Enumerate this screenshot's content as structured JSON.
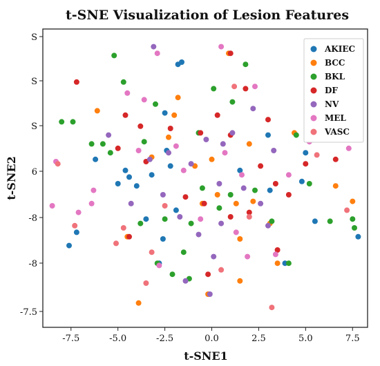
{
  "chart_data": {
    "type": "scatter",
    "title": "t-SNE Visualization of Lesion Features",
    "xlabel": "t-SNE1",
    "ylabel": "t-SNE2",
    "x_ticks": [
      "-7.5",
      "-5.0",
      "-2.5",
      "0.0",
      "2.5",
      "5.0",
      "7.5"
    ],
    "y_ticks": [
      "S",
      "S",
      "S",
      "6",
      "-8",
      "-8",
      "-7.5"
    ],
    "legend_position": "top-right",
    "series": [
      {
        "name": "AKIEC",
        "color": "#1f77b4",
        "points": [
          [
            -7.2,
            -2.7
          ],
          [
            -7.6,
            -3.3
          ],
          [
            -5.0,
            -0.5
          ],
          [
            -4.4,
            -0.2
          ],
          [
            -4.0,
            -0.6
          ],
          [
            -2.6,
            -3.0
          ],
          [
            -3.2,
            -0.1
          ],
          [
            -2.4,
            1.0
          ],
          [
            -1.8,
            4.9
          ],
          [
            -1.6,
            5.0
          ],
          [
            -1.9,
            -1.7
          ],
          [
            -2.2,
            0.3
          ],
          [
            -2.8,
            -4.1
          ],
          [
            -2.5,
            2.7
          ],
          [
            -3.5,
            -2.1
          ],
          [
            1.5,
            0.1
          ],
          [
            3.0,
            1.7
          ],
          [
            3.1,
            -0.8
          ],
          [
            3.9,
            -4.1
          ],
          [
            5.0,
            0.9
          ],
          [
            5.5,
            -2.2
          ],
          [
            4.8,
            -0.4
          ],
          [
            7.8,
            -2.9
          ],
          [
            -6.2,
            0.6
          ],
          [
            -4.6,
            0.1
          ]
        ]
      },
      {
        "name": "BCC",
        "color": "#ff7f0e",
        "points": [
          [
            -6.1,
            2.8
          ],
          [
            -4.5,
            -2.9
          ],
          [
            -1.8,
            3.4
          ],
          [
            -2.0,
            2.6
          ],
          [
            -2.3,
            1.6
          ],
          [
            -0.5,
            -1.4
          ],
          [
            0.0,
            0.6
          ],
          [
            0.3,
            -1.0
          ],
          [
            0.9,
            5.4
          ],
          [
            1.3,
            -1.4
          ],
          [
            1.5,
            -3.0
          ],
          [
            1.5,
            -4.9
          ],
          [
            2.0,
            1.3
          ],
          [
            2.2,
            -1.3
          ],
          [
            3.5,
            -4.1
          ],
          [
            4.4,
            1.8
          ],
          [
            6.6,
            -0.6
          ],
          [
            7.5,
            -1.3
          ],
          [
            -0.9,
            0.3
          ],
          [
            -3.9,
            -5.9
          ],
          [
            -0.2,
            -5.5
          ],
          [
            3.1,
            -2.3
          ],
          [
            -3.2,
            0.7
          ]
        ]
      },
      {
        "name": "BKL",
        "color": "#2ca02c",
        "points": [
          [
            -8.0,
            2.3
          ],
          [
            -7.4,
            2.3
          ],
          [
            -6.4,
            1.3
          ],
          [
            -5.8,
            1.3
          ],
          [
            -5.2,
            5.3
          ],
          [
            -4.7,
            4.1
          ],
          [
            -5.4,
            0.9
          ],
          [
            -3.8,
            -2.3
          ],
          [
            -3.6,
            1.4
          ],
          [
            -3.0,
            3.1
          ],
          [
            -2.9,
            -4.1
          ],
          [
            -2.5,
            -2.1
          ],
          [
            -1.5,
            -3.6
          ],
          [
            -1.1,
            -2.3
          ],
          [
            -0.5,
            -0.7
          ],
          [
            -0.7,
            1.8
          ],
          [
            0.1,
            3.8
          ],
          [
            0.4,
            -1.6
          ],
          [
            1.0,
            -1.0
          ],
          [
            1.1,
            3.2
          ],
          [
            1.8,
            4.9
          ],
          [
            2.3,
            -0.8
          ],
          [
            3.2,
            -2.2
          ],
          [
            4.1,
            -4.1
          ],
          [
            4.5,
            1.7
          ],
          [
            5.2,
            -0.5
          ],
          [
            6.3,
            -2.2
          ],
          [
            7.5,
            -2.1
          ],
          [
            7.6,
            -2.5
          ],
          [
            -1.2,
            -4.8
          ],
          [
            -2.1,
            -4.6
          ]
        ]
      },
      {
        "name": "DF",
        "color": "#d62728",
        "points": [
          [
            -7.2,
            4.1
          ],
          [
            -5.0,
            1.1
          ],
          [
            -4.6,
            2.6
          ],
          [
            -3.8,
            2.1
          ],
          [
            -3.5,
            0.5
          ],
          [
            -2.2,
            2.0
          ],
          [
            -1.4,
            -1.1
          ],
          [
            -0.6,
            1.8
          ],
          [
            -0.4,
            -1.4
          ],
          [
            0.3,
            2.6
          ],
          [
            1.0,
            5.4
          ],
          [
            1.8,
            3.8
          ],
          [
            1.0,
            1.7
          ],
          [
            1.0,
            -2.0
          ],
          [
            2.0,
            -1.8
          ],
          [
            2.6,
            0.3
          ],
          [
            3.0,
            2.4
          ],
          [
            3.4,
            -0.5
          ],
          [
            4.1,
            -1.0
          ],
          [
            5.0,
            0.4
          ],
          [
            6.6,
            0.6
          ],
          [
            -4.4,
            -2.9
          ],
          [
            -0.2,
            -4.6
          ],
          [
            3.5,
            -3.5
          ]
        ]
      },
      {
        "name": "NV",
        "color": "#9467bd",
        "points": [
          [
            -5.5,
            1.7
          ],
          [
            -3.1,
            5.7
          ],
          [
            -3.3,
            0.6
          ],
          [
            -2.6,
            -1.0
          ],
          [
            -2.3,
            0.9
          ],
          [
            -1.7,
            -2.0
          ],
          [
            -1.4,
            -4.9
          ],
          [
            -1.1,
            0.4
          ],
          [
            -0.7,
            -2.8
          ],
          [
            -0.3,
            1.5
          ],
          [
            0.1,
            -3.8
          ],
          [
            0.4,
            -0.5
          ],
          [
            0.6,
            1.3
          ],
          [
            1.1,
            1.8
          ],
          [
            1.7,
            -0.7
          ],
          [
            2.2,
            2.9
          ],
          [
            2.6,
            -1.4
          ],
          [
            3.0,
            -2.4
          ],
          [
            3.3,
            1.0
          ],
          [
            -0.1,
            -5.5
          ],
          [
            0.5,
            -2.3
          ],
          [
            -4.3,
            -1.4
          ]
        ]
      },
      {
        "name": "MEL",
        "color": "#e377c2",
        "points": [
          [
            -8.3,
            0.5
          ],
          [
            -7.1,
            -1.8
          ],
          [
            -6.4,
            -1.4
          ],
          [
            -6.3,
            -0.8
          ],
          [
            -4.5,
            3.6
          ],
          [
            -3.6,
            3.3
          ],
          [
            -3.9,
            1.0
          ],
          [
            -2.9,
            5.4
          ],
          [
            -2.8,
            -4.2
          ],
          [
            -1.9,
            1.2
          ],
          [
            -1.5,
            0.1
          ],
          [
            -0.6,
            -2.1
          ],
          [
            0.7,
            0.9
          ],
          [
            1.3,
            -2.7
          ],
          [
            1.9,
            -3.8
          ],
          [
            2.3,
            3.9
          ],
          [
            3.4,
            -3.7
          ],
          [
            4.1,
            -0.1
          ],
          [
            5.2,
            1.4
          ],
          [
            7.3,
            1.1
          ],
          [
            -8.5,
            -1.5
          ],
          [
            0.5,
            5.7
          ],
          [
            1.6,
            -0.1
          ]
        ]
      },
      {
        "name": "VASC",
        "color": "#f0727a",
        "points": [
          [
            -8.2,
            0.4
          ],
          [
            -7.3,
            -2.4
          ],
          [
            -5.1,
            -3.2
          ],
          [
            -4.7,
            -2.5
          ],
          [
            -3.2,
            -3.6
          ],
          [
            -2.5,
            -1.5
          ],
          [
            0.5,
            -4.4
          ],
          [
            2.0,
            -2.0
          ],
          [
            3.2,
            -6.1
          ],
          [
            5.6,
            0.8
          ],
          [
            7.2,
            -1.7
          ],
          [
            -3.5,
            -5.0
          ],
          [
            1.2,
            3.9
          ]
        ]
      }
    ]
  }
}
